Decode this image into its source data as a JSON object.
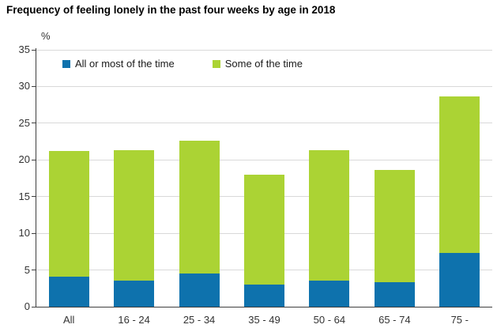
{
  "title": "Frequency of feeling lonely in the past four weeks by age in 2018",
  "chart_data": {
    "type": "bar",
    "stacked": true,
    "title": "Frequency of feeling lonely in the past four weeks by age in 2018",
    "ylabel": "%",
    "xlabel": "",
    "ylim": [
      0,
      35
    ],
    "yticks": [
      0,
      5,
      10,
      15,
      20,
      25,
      30,
      35
    ],
    "grid": true,
    "legend_position": "top-inside",
    "categories": [
      "All",
      "16 - 24",
      "25 - 34",
      "35 - 49",
      "50 - 64",
      "65 - 74",
      "75 -"
    ],
    "series": [
      {
        "name": "All or most of the time",
        "color": "#0e72ad",
        "values": [
          4.1,
          3.6,
          4.5,
          3.0,
          3.6,
          3.3,
          7.3
        ]
      },
      {
        "name": "Some of the time",
        "color": "#abd334",
        "values": [
          17.1,
          17.7,
          18.1,
          15.0,
          17.7,
          15.3,
          21.4
        ]
      }
    ],
    "stack_totals": [
      21.2,
      21.3,
      22.6,
      18.0,
      21.3,
      18.6,
      28.7
    ]
  },
  "style_colors": {
    "gridline": "#d9d9d9",
    "axis": "#3f3f3f",
    "text": "#333333"
  }
}
